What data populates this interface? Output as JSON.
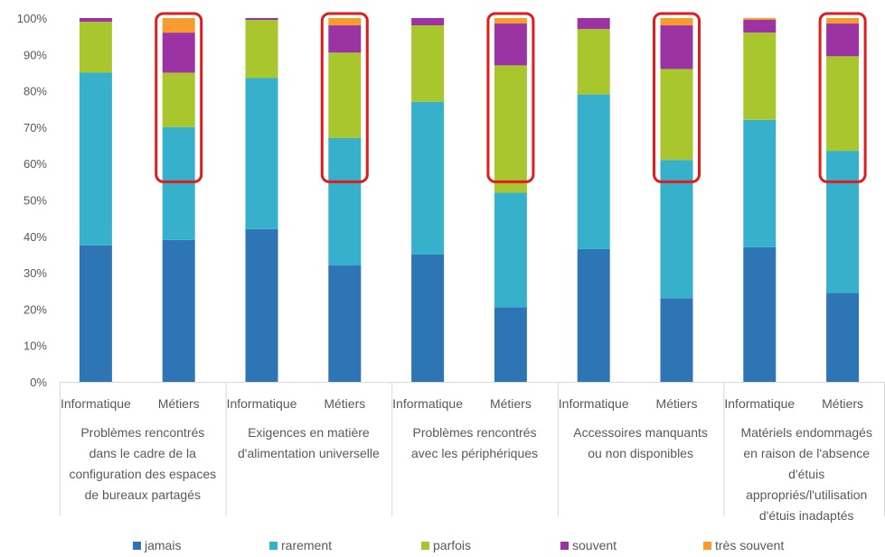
{
  "chart_data": {
    "type": "bar",
    "stacked": true,
    "percent": true,
    "ylim": [
      0,
      100
    ],
    "yticks": [
      "0%",
      "10%",
      "20%",
      "30%",
      "40%",
      "50%",
      "60%",
      "70%",
      "80%",
      "90%",
      "100%"
    ],
    "groups": [
      {
        "label": [
          "Problèmes rencontrés",
          "dans le cadre de la",
          "configuration des espaces",
          "de bureaux partagés"
        ],
        "categories": [
          "Informatique",
          "Métiers"
        ]
      },
      {
        "label": [
          "Exigences en matière",
          "d'alimentation universelle"
        ],
        "categories": [
          "Informatique",
          "Métiers"
        ]
      },
      {
        "label": [
          "Problèmes rencontrés",
          "avec les périphériques"
        ],
        "categories": [
          "Informatique",
          "Métiers"
        ]
      },
      {
        "label": [
          "Accessoires manquants",
          "ou non disponibles"
        ],
        "categories": [
          "Informatique",
          "Métiers"
        ]
      },
      {
        "label": [
          "Matériels endommagés",
          "en raison de l'absence",
          "d'étuis",
          "appropriés/l'utilisation",
          "d'étuis inadaptés"
        ],
        "categories": [
          "Informatique",
          "Métiers"
        ]
      }
    ],
    "series": [
      {
        "name": "jamais",
        "color": "#2e75b6",
        "values": [
          37.5,
          39,
          42,
          32,
          35,
          20.5,
          36.5,
          23,
          37,
          24.5
        ]
      },
      {
        "name": "rarement",
        "color": "#36b0cb",
        "values": [
          47.5,
          31,
          41.5,
          35,
          42,
          31.5,
          42.5,
          38,
          35,
          39
        ]
      },
      {
        "name": "parfois",
        "color": "#a9c62e",
        "values": [
          14,
          15,
          16,
          23.5,
          21,
          35,
          18,
          25,
          24,
          26
        ]
      },
      {
        "name": "souvent",
        "color": "#9b34a2",
        "values": [
          1,
          11,
          0.5,
          7.5,
          2,
          11.5,
          3,
          12,
          3.5,
          9
        ]
      },
      {
        "name": "très souvent",
        "color": "#f79c2e",
        "values": [
          0,
          4,
          0,
          2,
          0,
          1.5,
          0,
          2,
          0.5,
          1.5
        ]
      }
    ],
    "highlighted_bars": [
      1,
      3,
      5,
      7,
      9
    ],
    "highlight_range": [
      55,
      100
    ],
    "highlight_color": "#e21b1b",
    "legend_position": "bottom",
    "grid": false
  }
}
